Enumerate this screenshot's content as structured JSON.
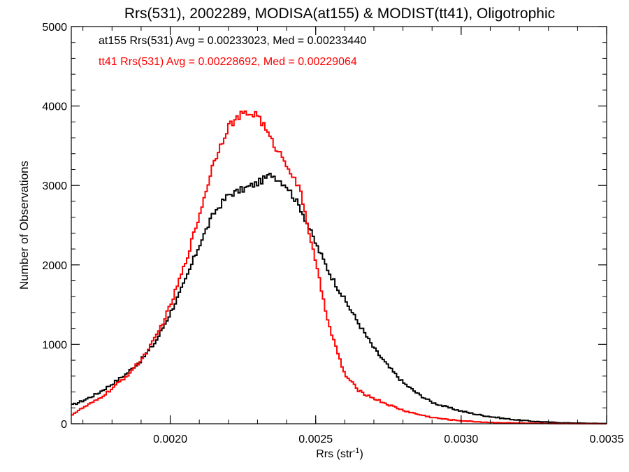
{
  "chart_data": {
    "type": "line",
    "title": "Rrs(531), 2002289, MODISA(at155) & MODIST(tt41), Oligotrophic",
    "xlabel_main": "Rrs (str",
    "xlabel_sup": "-1",
    "xlabel_close": ")",
    "ylabel": "Number of Observations",
    "xlim": [
      0.00166,
      0.0035
    ],
    "ylim": [
      0,
      5000
    ],
    "x_ticks": [
      0.002,
      0.0025,
      0.003,
      0.0035
    ],
    "x_tick_labels": [
      "0.0020",
      "0.0025",
      "0.0030",
      "0.0035"
    ],
    "y_ticks": [
      0,
      1000,
      2000,
      3000,
      4000,
      5000
    ],
    "y_tick_labels": [
      "0",
      "1000",
      "2000",
      "3000",
      "4000",
      "5000"
    ],
    "grid": false,
    "legend_position": "top-left",
    "series": [
      {
        "name": "at155",
        "color": "#000000",
        "annotation": "at155 Rrs(531) Avg = 0.00233023, Med = 0.00233440",
        "x": [
          0.00166,
          0.0017,
          0.00175,
          0.0018,
          0.00185,
          0.0019,
          0.00195,
          0.002,
          0.00205,
          0.0021,
          0.00215,
          0.0022,
          0.00225,
          0.0023,
          0.00235,
          0.0024,
          0.00245,
          0.0025,
          0.00255,
          0.0026,
          0.00265,
          0.0027,
          0.00275,
          0.0028,
          0.00285,
          0.0029,
          0.00295,
          0.003,
          0.00305,
          0.0031,
          0.00315,
          0.0032,
          0.00325,
          0.0033,
          0.00335,
          0.0034,
          0.00345,
          0.0035
        ],
        "y": [
          230,
          290,
          380,
          500,
          630,
          800,
          1030,
          1390,
          1780,
          2250,
          2650,
          2880,
          2950,
          3030,
          3140,
          3000,
          2700,
          2270,
          1880,
          1560,
          1250,
          950,
          720,
          520,
          380,
          270,
          210,
          160,
          120,
          90,
          65,
          45,
          30,
          20,
          12,
          8,
          5,
          3
        ]
      },
      {
        "name": "tt41",
        "color": "#ff0000",
        "annotation": "tt41 Rrs(531) Avg = 0.00228692, Med = 0.00229064",
        "x": [
          0.00166,
          0.0017,
          0.00175,
          0.0018,
          0.00185,
          0.0019,
          0.00195,
          0.002,
          0.00205,
          0.0021,
          0.00215,
          0.0022,
          0.00225,
          0.0023,
          0.00235,
          0.0024,
          0.00245,
          0.0025,
          0.00255,
          0.0026,
          0.00265,
          0.0027,
          0.00275,
          0.0028,
          0.00285,
          0.0029,
          0.00295,
          0.003,
          0.00305,
          0.0031,
          0.00315,
          0.0032,
          0.00325,
          0.0033,
          0.00335,
          0.0034,
          0.00345,
          0.0035
        ],
        "y": [
          110,
          200,
          300,
          440,
          600,
          800,
          1080,
          1480,
          2000,
          2620,
          3300,
          3750,
          3900,
          3900,
          3550,
          3280,
          2900,
          2020,
          1180,
          620,
          410,
          320,
          240,
          170,
          120,
          80,
          55,
          38,
          26,
          17,
          12,
          8,
          5,
          3,
          2,
          1,
          1,
          0
        ]
      }
    ]
  }
}
